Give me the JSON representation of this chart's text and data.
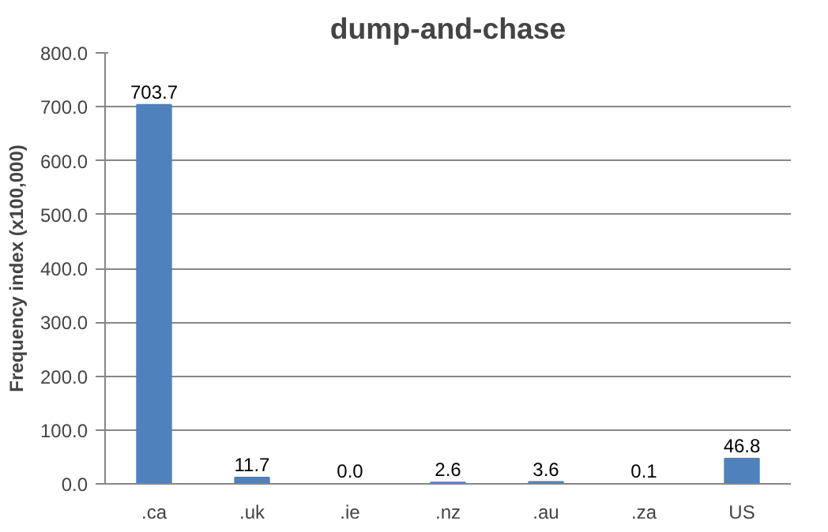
{
  "chart_data": {
    "type": "bar",
    "title": "dump-and-chase",
    "ylabel": "Frequency index (x100,000)",
    "categories": [
      ".ca",
      ".uk",
      ".ie",
      ".nz",
      ".au",
      ".za",
      "US"
    ],
    "values": [
      703.7,
      11.7,
      0.0,
      2.6,
      3.6,
      0.1,
      46.8
    ],
    "value_labels": [
      "703.7",
      "11.7",
      "0.0",
      "2.6",
      "3.6",
      "0.1",
      "46.8"
    ],
    "color": "#4f81bd",
    "ylim": [
      0,
      800
    ],
    "yticks": [
      {
        "value": 0,
        "label": "0.0"
      },
      {
        "value": 100,
        "label": "100.0"
      },
      {
        "value": 200,
        "label": "200.0"
      },
      {
        "value": 300,
        "label": "300.0"
      },
      {
        "value": 400,
        "label": "400.0"
      },
      {
        "value": 500,
        "label": "500.0"
      },
      {
        "value": 600,
        "label": "600.0"
      },
      {
        "value": 700,
        "label": "700.0"
      },
      {
        "value": 800,
        "label": "800.0"
      }
    ],
    "grid": "y"
  }
}
